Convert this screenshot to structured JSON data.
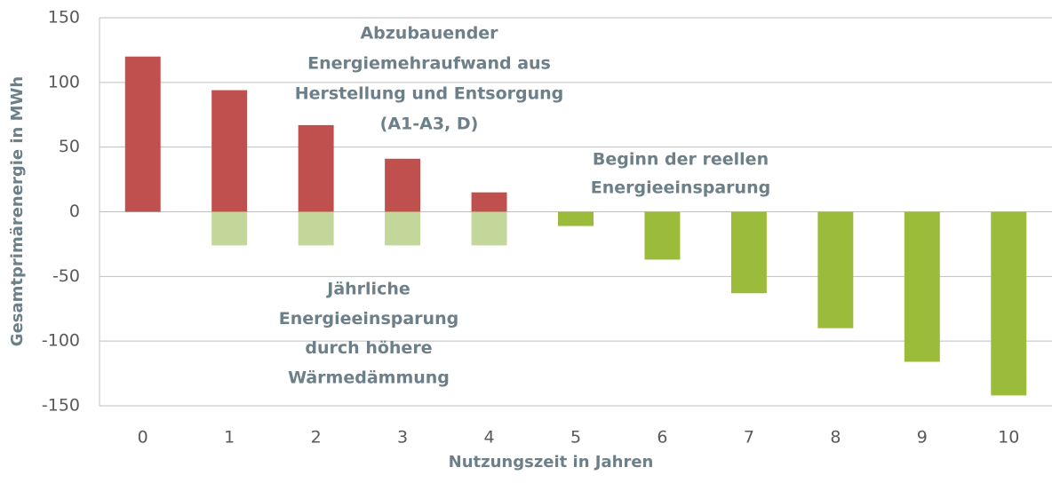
{
  "chart_data": {
    "type": "bar",
    "y_label": "Gesamtprimärenergie  in MWh",
    "x_label": "Nutzungszeit in Jahren",
    "categories": [
      "0",
      "1",
      "2",
      "3",
      "4",
      "5",
      "6",
      "7",
      "8",
      "9",
      "10"
    ],
    "series": [
      {
        "color": "#c0504d",
        "values": [
          120,
          94,
          67,
          41,
          15,
          null,
          null,
          null,
          null,
          null,
          null
        ]
      },
      {
        "color": "#c4d79b",
        "values": [
          null,
          -26,
          -26,
          -26,
          -26,
          null,
          null,
          null,
          null,
          null,
          null
        ]
      },
      {
        "color": "#9bbb3b",
        "values": [
          null,
          null,
          null,
          null,
          null,
          -11,
          -37,
          -63,
          -90,
          -116,
          -142
        ]
      }
    ],
    "annotations": [
      {
        "lines": [
          "Abzubauender",
          "Energiemehraufwand aus",
          "Herstellung und Entsorgung",
          "(A1-A3, D)"
        ]
      },
      {
        "lines": [
          "Beginn der reellen",
          "Energieeinsparung"
        ]
      },
      {
        "lines": [
          "Jährliche",
          "Energieeinsparung",
          "durch höhere",
          "Wärmedämmung"
        ]
      }
    ],
    "ylim": [
      -150,
      150
    ],
    "yticks": [
      150,
      100,
      50,
      0,
      -50,
      -100,
      -150
    ],
    "grid": true
  }
}
